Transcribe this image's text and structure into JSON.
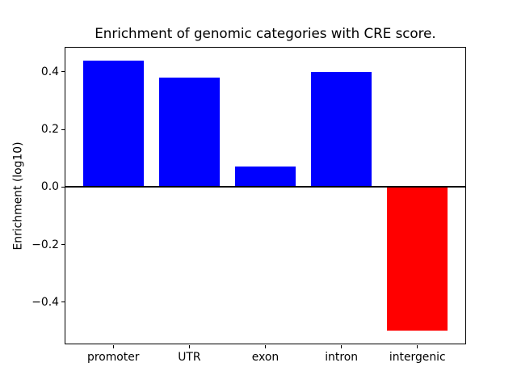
{
  "chart_data": {
    "type": "bar",
    "title": "Enrichment of genomic categories with CRE score.",
    "xlabel": "",
    "ylabel": "Enrichment (log10)",
    "categories": [
      "promoter",
      "UTR",
      "exon",
      "intron",
      "intergenic"
    ],
    "values": [
      0.44,
      0.38,
      0.07,
      0.4,
      -0.5
    ],
    "positive_color": "#0000ff",
    "negative_color": "#ff0000",
    "axis_color": "#000000",
    "background_color": "#ffffff",
    "ylim": [
      -0.547,
      0.487
    ],
    "xlim": [
      -0.64,
      4.64
    ],
    "bar_width_units": 0.8,
    "yticks": [
      0.4,
      0.2,
      0.0,
      -0.2,
      -0.4
    ],
    "ytick_labels": [
      "0.4",
      "0.2",
      "0.0",
      "−0.2",
      "−0.4"
    ],
    "zero_line": true,
    "grid": false,
    "legend": null
  }
}
